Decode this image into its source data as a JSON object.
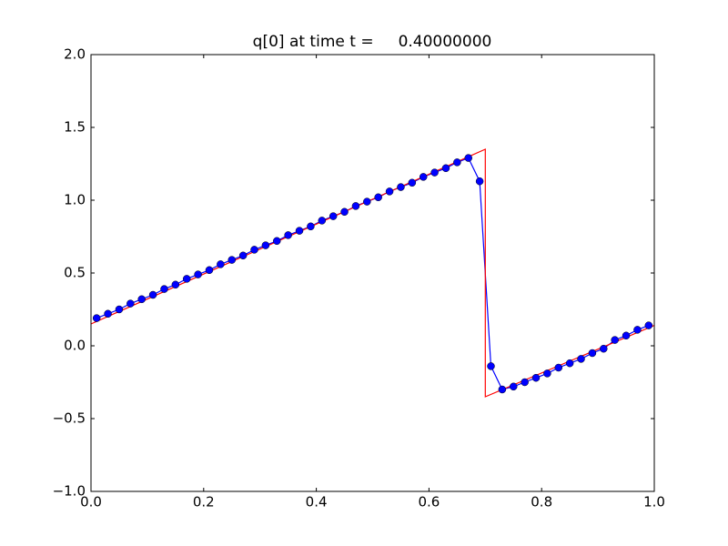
{
  "chart_data": {
    "type": "line",
    "title": "q[0] at time t =     0.40000000",
    "xlim": [
      0,
      1
    ],
    "ylim": [
      -1,
      2
    ],
    "xticks": [
      {
        "value": 0,
        "label": "0.0"
      },
      0.2,
      0.4,
      0.6,
      0.8,
      {
        "value": 1,
        "label": "1.0"
      }
    ],
    "yticks": [
      {
        "value": -1,
        "label": "−1.0"
      },
      {
        "value": -0.5,
        "label": "−0.5"
      },
      {
        "value": 0,
        "label": "0.0"
      },
      0.5,
      {
        "value": 1,
        "label": "1.0"
      },
      1.5,
      {
        "value": 2,
        "label": "2.0"
      }
    ],
    "series": [
      {
        "color": "#0000ff",
        "marker": "circle",
        "x": [
          0.01,
          0.03,
          0.05,
          0.07,
          0.09,
          0.11,
          0.13,
          0.15,
          0.17,
          0.19,
          0.21,
          0.23,
          0.25,
          0.27,
          0.29,
          0.31,
          0.33,
          0.35,
          0.37,
          0.39,
          0.41,
          0.43,
          0.45,
          0.47,
          0.49,
          0.51,
          0.53,
          0.55,
          0.57,
          0.59,
          0.61,
          0.63,
          0.65,
          0.67,
          0.69,
          0.71,
          0.73,
          0.75,
          0.77,
          0.79,
          0.81,
          0.83,
          0.85,
          0.87,
          0.89,
          0.91,
          0.93,
          0.95,
          0.97,
          0.99
        ],
        "values": [
          0.19,
          0.22,
          0.25,
          0.29,
          0.32,
          0.35,
          0.39,
          0.42,
          0.46,
          0.49,
          0.52,
          0.56,
          0.59,
          0.62,
          0.66,
          0.69,
          0.72,
          0.76,
          0.79,
          0.82,
          0.86,
          0.89,
          0.92,
          0.96,
          0.99,
          1.02,
          1.06,
          1.09,
          1.12,
          1.16,
          1.19,
          1.22,
          1.26,
          1.29,
          1.13,
          -0.14,
          -0.3,
          -0.28,
          -0.25,
          -0.22,
          -0.19,
          -0.15,
          -0.12,
          -0.09,
          -0.05,
          -0.02,
          0.04,
          0.07,
          0.11,
          0.14
        ]
      },
      {
        "color": "#ff0000",
        "marker": "none",
        "x": [
          0,
          0.7,
          0.7,
          1
        ],
        "values": [
          0.15,
          1.35,
          -0.35,
          0.14
        ]
      }
    ]
  }
}
